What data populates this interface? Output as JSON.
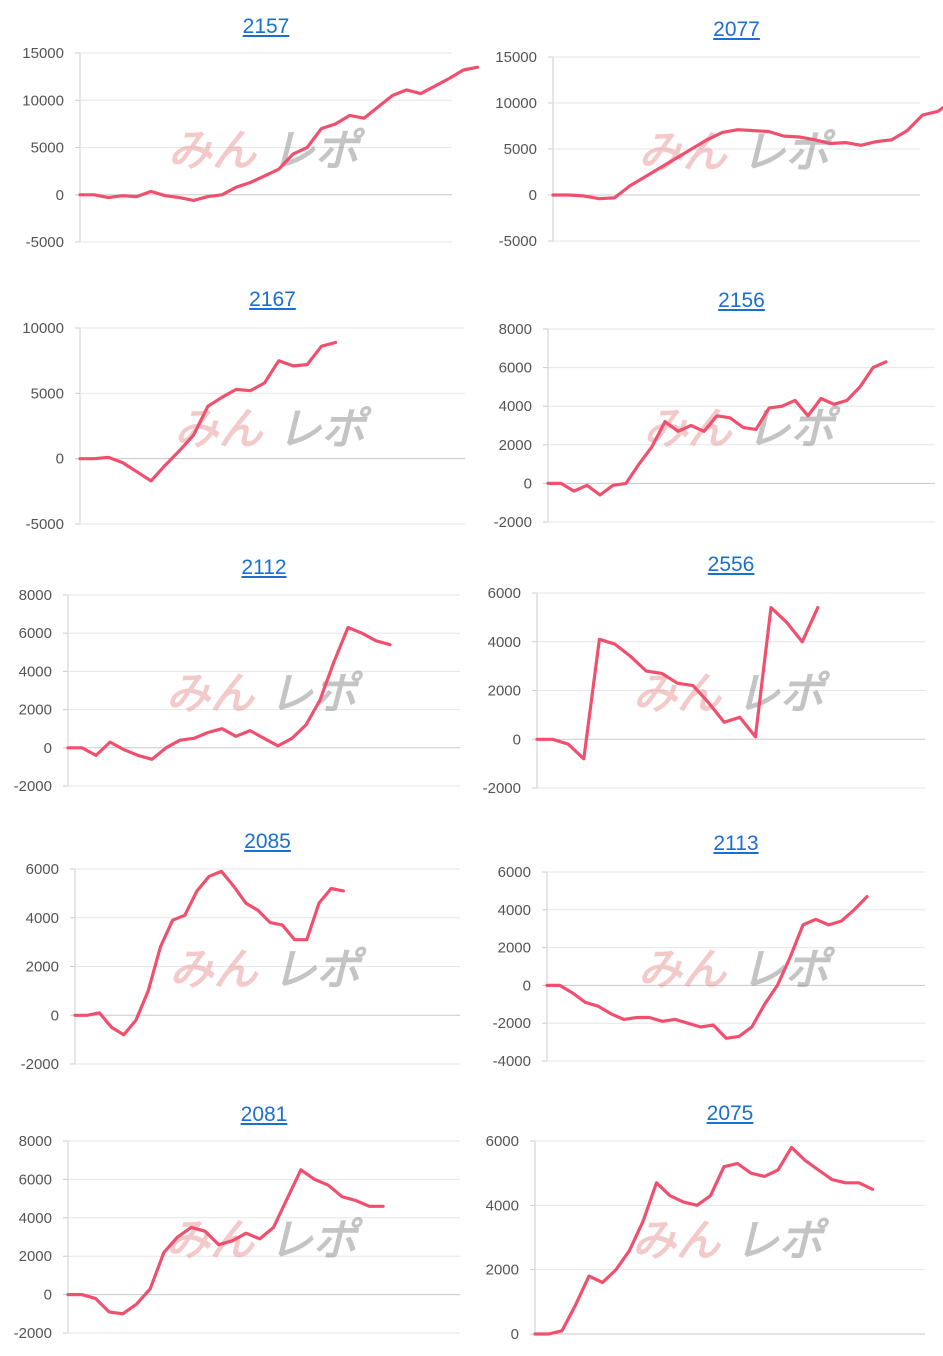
{
  "page": {
    "background": "#ffffff",
    "line_color": "#f0506e",
    "watermark_text": "みんレポ"
  },
  "chart_data": [
    {
      "type": "line",
      "title": "2157",
      "ylim": [
        -5000,
        15000
      ],
      "yticks": [
        15000,
        10000,
        5000,
        0,
        -5000
      ],
      "grid": true,
      "values": [
        0,
        0,
        -300,
        -100,
        -200,
        350,
        -100,
        -300,
        -600,
        -200,
        0,
        800,
        1300,
        2000,
        2700,
        4300,
        5000,
        7000,
        7500,
        8400,
        8100,
        9300,
        10500,
        11100,
        10700,
        11500,
        12300,
        13200,
        13500
      ]
    },
    {
      "type": "line",
      "title": "2077",
      "ylim": [
        -5000,
        15000
      ],
      "yticks": [
        15000,
        10000,
        5000,
        0,
        -5000
      ],
      "grid": true,
      "values": [
        0,
        0,
        -100,
        -400,
        -300,
        1000,
        2000,
        3000,
        4000,
        5000,
        6000,
        6800,
        7100,
        7000,
        6900,
        6400,
        6300,
        6000,
        5600,
        5700,
        5400,
        5800,
        6000,
        7000,
        8700,
        9100,
        10300,
        10500
      ]
    },
    {
      "type": "line",
      "title": "2167",
      "ylim": [
        -5000,
        10000
      ],
      "yticks": [
        10000,
        5000,
        0,
        -5000
      ],
      "grid": true,
      "values": [
        0,
        0,
        100,
        -300,
        -1000,
        -1700,
        -500,
        600,
        1800,
        4000,
        4700,
        5300,
        5200,
        5800,
        7500,
        7100,
        7200,
        8600,
        8900
      ]
    },
    {
      "type": "line",
      "title": "2156",
      "ylim": [
        -2000,
        8000
      ],
      "yticks": [
        8000,
        6000,
        4000,
        2000,
        0,
        -2000
      ],
      "grid": true,
      "values": [
        0,
        0,
        -400,
        -100,
        -600,
        -100,
        0,
        1000,
        1900,
        3200,
        2700,
        3000,
        2700,
        3500,
        3400,
        2900,
        2800,
        3900,
        4000,
        4300,
        3500,
        4400,
        4100,
        4300,
        5000,
        6000,
        6300
      ]
    },
    {
      "type": "line",
      "title": "2112",
      "ylim": [
        -2000,
        8000
      ],
      "yticks": [
        8000,
        6000,
        4000,
        2000,
        0,
        -2000
      ],
      "grid": true,
      "values": [
        0,
        0,
        -400,
        300,
        -100,
        -400,
        -600,
        0,
        400,
        500,
        800,
        1000,
        600,
        900,
        500,
        100,
        500,
        1200,
        2500,
        4500,
        6300,
        6000,
        5600,
        5400
      ]
    },
    {
      "type": "line",
      "title": "2556",
      "ylim": [
        -2000,
        6000
      ],
      "yticks": [
        6000,
        4000,
        2000,
        0,
        -2000
      ],
      "grid": true,
      "values": [
        0,
        0,
        -200,
        -800,
        4100,
        3900,
        3400,
        2800,
        2700,
        2300,
        2200,
        1500,
        700,
        900,
        100,
        5400,
        4800,
        4000,
        5400
      ]
    },
    {
      "type": "line",
      "title": "2085",
      "ylim": [
        -2000,
        6000
      ],
      "yticks": [
        6000,
        4000,
        2000,
        0,
        -2000
      ],
      "grid": true,
      "values": [
        0,
        0,
        100,
        -500,
        -800,
        -200,
        1000,
        2800,
        3900,
        4100,
        5100,
        5700,
        5900,
        5300,
        4600,
        4300,
        3800,
        3700,
        3100,
        3100,
        4600,
        5200,
        5100
      ]
    },
    {
      "type": "line",
      "title": "2113",
      "ylim": [
        -4000,
        6000
      ],
      "yticks": [
        6000,
        4000,
        2000,
        0,
        -2000,
        -4000
      ],
      "grid": true,
      "values": [
        0,
        0,
        -400,
        -900,
        -1100,
        -1500,
        -1800,
        -1700,
        -1700,
        -1900,
        -1800,
        -2000,
        -2200,
        -2100,
        -2800,
        -2700,
        -2200,
        -1000,
        0,
        1500,
        3200,
        3500,
        3200,
        3400,
        4000,
        4700
      ]
    },
    {
      "type": "line",
      "title": "2081",
      "ylim": [
        -2000,
        8000
      ],
      "yticks": [
        8000,
        6000,
        4000,
        2000,
        0,
        -2000
      ],
      "grid": true,
      "values": [
        0,
        0,
        -200,
        -900,
        -1000,
        -500,
        300,
        2200,
        3000,
        3500,
        3300,
        2600,
        2800,
        3200,
        2900,
        3500,
        5000,
        6500,
        6000,
        5700,
        5100,
        4900,
        4600,
        4600
      ]
    },
    {
      "type": "line",
      "title": "2075",
      "ylim": [
        0,
        6000
      ],
      "yticks": [
        6000,
        4000,
        2000,
        0
      ],
      "grid": true,
      "values": [
        0,
        0,
        100,
        900,
        1800,
        1600,
        2000,
        2600,
        3500,
        4700,
        4300,
        4100,
        4000,
        4300,
        5200,
        5300,
        5000,
        4900,
        5100,
        5800,
        5400,
        5100,
        4800,
        4700,
        4700,
        4500
      ]
    }
  ]
}
